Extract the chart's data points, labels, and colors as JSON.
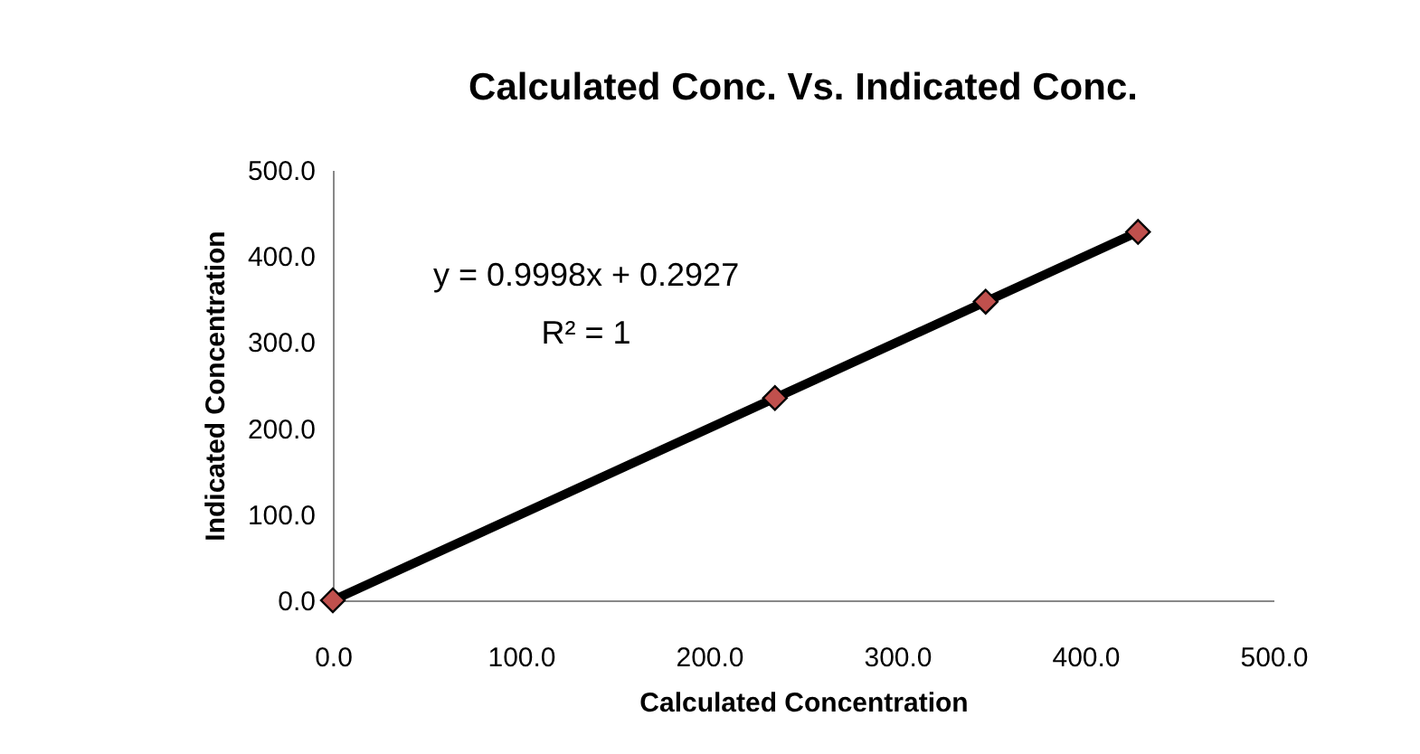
{
  "chart_data": {
    "type": "scatter",
    "title": "Calculated Conc. Vs. Indicated Conc.",
    "xlabel": "Calculated Concentration",
    "ylabel": "Indicated Concentration",
    "x": [
      0,
      235,
      347,
      428
    ],
    "series": [
      {
        "type": "line",
        "color": "#000000",
        "x": [
          0,
          428
        ],
        "values": [
          0,
          428
        ],
        "marker": "none",
        "line_style": "solid"
      },
      {
        "color": "#c0504d",
        "values": [
          0,
          235,
          347,
          428
        ],
        "marker": "diamond"
      }
    ],
    "xlim": [
      0,
      500
    ],
    "ylim": [
      0,
      500
    ],
    "xticks": [
      {
        "value": 0,
        "label": "0.0"
      },
      {
        "value": 100,
        "label": "100.0"
      },
      {
        "value": 200,
        "label": "200.0"
      },
      {
        "value": 300,
        "label": "300.0"
      },
      {
        "value": 400,
        "label": "400.0"
      },
      {
        "value": 500,
        "label": "500.0"
      }
    ],
    "yticks": [
      {
        "value": 0,
        "label": "0.0"
      },
      {
        "value": 100,
        "label": "100.0"
      },
      {
        "value": 200,
        "label": "200.0"
      },
      {
        "value": 300,
        "label": "300.0"
      },
      {
        "value": 400,
        "label": "400.0"
      },
      {
        "value": 500,
        "label": "500.0"
      }
    ],
    "annotations": [
      "y = 0.9998x + 0.2927",
      "R² = 1"
    ],
    "grid": false
  }
}
